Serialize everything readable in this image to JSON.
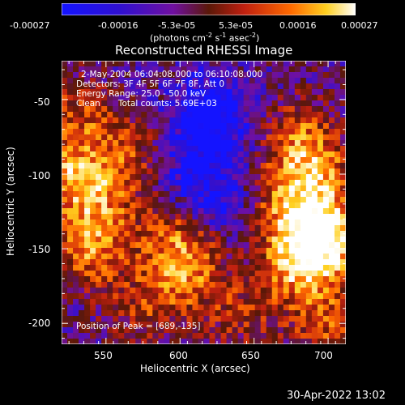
{
  "colorbar": {
    "ticks": [
      "-0.00027",
      "-0.00016",
      "-5.3e-05",
      "5.3e-05",
      "0.00016",
      "0.00027"
    ],
    "units_part1": "(photons cm",
    "units_exp1": "-2",
    "units_part2": " s",
    "units_exp2": "-1",
    "units_part3": " asec",
    "units_exp3": "-2",
    "units_part4": ")",
    "range": [
      -0.00027,
      0.00027
    ],
    "colors": [
      "#1414ff",
      "#3010d0",
      "#7010a0",
      "#5a1808",
      "#c02010",
      "#ff6a00",
      "#ffd020",
      "#ffffff"
    ]
  },
  "annotations": {
    "time_range": "2-May-2004 06:04:08.000 to 06:10:08.000",
    "detectors": "Detectors: 3F 4F 5F 6F 7F 8F, Att 0",
    "energy_range": "Energy Range: 25.0 - 50.0 keV",
    "method": "Clean",
    "total_counts": "Total counts: 5.69E+03",
    "peak_position": "Position of Peak = [689,-135]"
  },
  "footer": {
    "timestamp": "30-Apr-2022 13:02"
  },
  "chart_data": {
    "type": "heatmap",
    "title": "Reconstructed RHESSI Image",
    "xlabel": "Heliocentric X (arcsec)",
    "ylabel": "Heliocentric Y (arcsec)",
    "xlim": [
      520,
      712
    ],
    "ylim": [
      -214,
      -24
    ],
    "x_ticks": [
      "550",
      "600",
      "650",
      "700"
    ],
    "y_ticks": [
      "-50",
      "-100",
      "-150",
      "-200"
    ],
    "x_tick_values": [
      550,
      600,
      650,
      700
    ],
    "y_tick_values": [
      -50,
      -100,
      -150,
      -200
    ],
    "grid": false,
    "colorbar": "top",
    "grid_shape": [
      50,
      50
    ],
    "value_range": [
      -0.00027,
      0.00027
    ],
    "peak": [
      689,
      -135
    ],
    "features": [
      {
        "x": 540,
        "y": -150,
        "intensity": 0.85
      },
      {
        "x": 525,
        "y": -100,
        "intensity": 0.75
      },
      {
        "x": 545,
        "y": -115,
        "intensity": 0.6
      },
      {
        "x": 530,
        "y": -60,
        "intensity": 0.55
      },
      {
        "x": 565,
        "y": -85,
        "intensity": 0.5
      },
      {
        "x": 605,
        "y": -165,
        "intensity": 0.8
      },
      {
        "x": 595,
        "y": -140,
        "intensity": 0.55
      },
      {
        "x": 575,
        "y": -190,
        "intensity": 0.45
      },
      {
        "x": 689,
        "y": -135,
        "intensity": 1.0
      },
      {
        "x": 690,
        "y": -100,
        "intensity": 0.8
      },
      {
        "x": 700,
        "y": -150,
        "intensity": 0.85
      },
      {
        "x": 675,
        "y": -165,
        "intensity": 0.7
      },
      {
        "x": 680,
        "y": -75,
        "intensity": 0.6
      },
      {
        "x": 700,
        "y": -200,
        "intensity": 0.6
      },
      {
        "x": 665,
        "y": -120,
        "intensity": 0.45
      },
      {
        "x": 640,
        "y": -195,
        "intensity": 0.4
      },
      {
        "x": 620,
        "y": -60,
        "intensity": -0.9
      },
      {
        "x": 630,
        "y": -120,
        "intensity": -0.4
      },
      {
        "x": 610,
        "y": -100,
        "intensity": -0.5
      }
    ]
  }
}
